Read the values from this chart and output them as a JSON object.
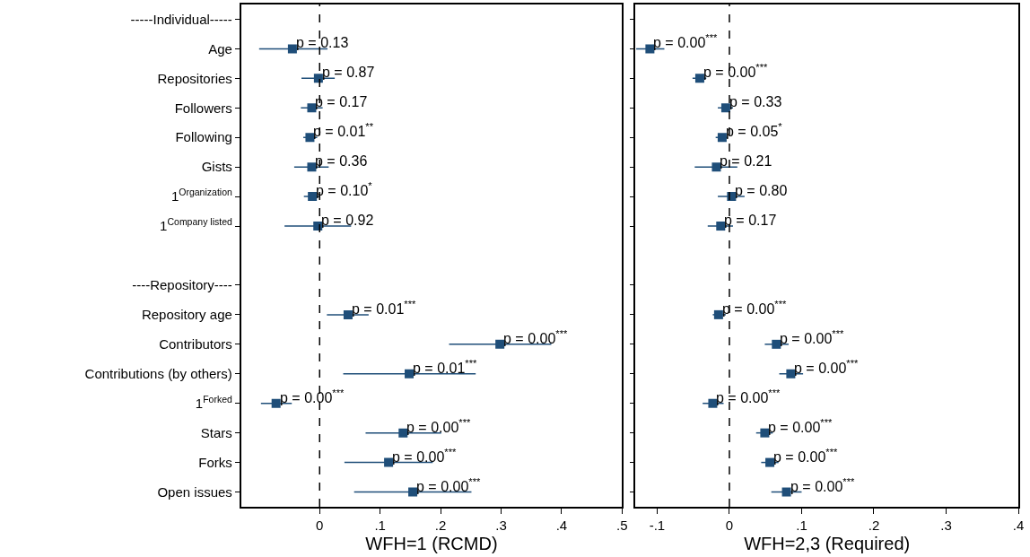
{
  "chart_data": [
    {
      "type": "scatter",
      "orientation": "horizontal",
      "marker": "square",
      "color": "#1f4e79",
      "xlabel": "WFH=1 (RCMD)",
      "categories": [
        "-----Individual-----",
        "Age",
        "Repositories",
        "Followers",
        "Following",
        "Gists",
        "1$^{Organization}$",
        "1$^{Company listed}$",
        null,
        "----Repository----",
        "Repository age",
        "Contributors",
        "Contributions (by others)",
        "1$^{Forked}$",
        "Stars",
        "Forks",
        "Open issues"
      ],
      "values": [
        null,
        -0.045,
        -0.002,
        -0.013,
        -0.016,
        -0.013,
        -0.012,
        -0.003,
        null,
        null,
        0.047,
        0.298,
        0.148,
        -0.072,
        0.138,
        0.114,
        0.154
      ],
      "errors": [
        null,
        [
          -0.1,
          0.013
        ],
        [
          -0.03,
          0.025
        ],
        [
          -0.031,
          0.005
        ],
        [
          -0.027,
          -0.004
        ],
        [
          -0.042,
          0.015
        ],
        [
          -0.026,
          0.0
        ],
        [
          -0.058,
          0.052
        ],
        null,
        null,
        [
          0.012,
          0.081
        ],
        [
          0.214,
          0.383
        ],
        [
          0.039,
          0.258
        ],
        [
          -0.097,
          -0.046
        ],
        [
          0.076,
          0.201
        ],
        [
          0.041,
          0.187
        ],
        [
          0.057,
          0.251
        ]
      ],
      "xlim": [
        -0.13,
        0.5
      ],
      "xticks": [
        0,
        {
          "value": 0.1,
          "label": ".1"
        },
        {
          "value": 0.2,
          "label": ".2"
        },
        {
          "value": 0.3,
          "label": ".3"
        },
        {
          "value": 0.4,
          "label": ".4"
        },
        {
          "value": 0.5,
          "label": ".5"
        }
      ],
      "ref_lines": [
        {
          "axis": "x",
          "value": 0,
          "color": "#000000",
          "line_style": "dashed"
        }
      ],
      "annotations": [
        {
          "text": "p = 0.13",
          "x": -0.045,
          "y": "Age"
        },
        {
          "text": "p = 0.87",
          "x": -0.002,
          "y": "Repositories"
        },
        {
          "text": "p = 0.17",
          "x": -0.013,
          "y": "Followers"
        },
        {
          "text": "p = 0.01$^{**}$",
          "x": -0.016,
          "y": "Following"
        },
        {
          "text": "p = 0.36",
          "x": -0.013,
          "y": "Gists"
        },
        {
          "text": "p = 0.10$^{*}$",
          "x": -0.012,
          "y": "1$^{Organization}$"
        },
        {
          "text": "p = 0.92",
          "x": -0.003,
          "y": "1$^{Company listed}$"
        },
        {
          "text": "p = 0.01$^{***}$",
          "x": 0.047,
          "y": "Repository age"
        },
        {
          "text": "p = 0.00$^{***}$",
          "x": 0.298,
          "y": "Contributors"
        },
        {
          "text": "p = 0.01$^{***}$",
          "x": 0.148,
          "y": "Contributions (by others)"
        },
        {
          "text": "p = 0.00$^{***}$",
          "x": -0.072,
          "y": "1$^{Forked}$"
        },
        {
          "text": "p = 0.00$^{***}$",
          "x": 0.138,
          "y": "Stars"
        },
        {
          "text": "p = 0.00$^{***}$",
          "x": 0.114,
          "y": "Forks"
        },
        {
          "text": "p = 0.00$^{***}$",
          "x": 0.154,
          "y": "Open issues"
        }
      ]
    },
    {
      "type": "scatter",
      "orientation": "horizontal",
      "marker": "square",
      "color": "#1f4e79",
      "xlabel": "WFH=2,3 (Required)",
      "tick_labels": "x",
      "categories": [
        "-----Individual-----",
        "Age",
        "Repositories",
        "Followers",
        "Following",
        "Gists",
        "1$^{Organization}$",
        "1$^{Company listed}$",
        null,
        "----Repository----",
        "Repository age",
        "Contributors",
        "Contributions (by others)",
        "1$^{Forked}$",
        "Stars",
        "Forks",
        "Open issues"
      ],
      "values": [
        null,
        -0.11,
        -0.041,
        -0.005,
        -0.01,
        -0.018,
        0.003,
        -0.012,
        null,
        null,
        -0.015,
        0.065,
        0.085,
        -0.023,
        0.049,
        0.056,
        0.079
      ],
      "errors": [
        null,
        [
          -0.129,
          -0.09
        ],
        [
          -0.051,
          -0.032
        ],
        [
          -0.016,
          0.005
        ],
        [
          -0.019,
          -0.002
        ],
        [
          -0.048,
          0.011
        ],
        [
          -0.016,
          0.021
        ],
        [
          -0.03,
          0.005
        ],
        null,
        null,
        [
          -0.023,
          -0.005
        ],
        [
          0.049,
          0.082
        ],
        [
          0.069,
          0.102
        ],
        [
          -0.037,
          -0.008
        ],
        [
          0.037,
          0.06
        ],
        [
          0.044,
          0.068
        ],
        [
          0.058,
          0.1
        ]
      ],
      "xlim": [
        -0.13,
        0.4
      ],
      "xticks": [
        {
          "value": -0.1,
          "label": "-.1"
        },
        0,
        {
          "value": 0.1,
          "label": ".1"
        },
        {
          "value": 0.2,
          "label": ".2"
        },
        {
          "value": 0.3,
          "label": ".3"
        },
        {
          "value": 0.4,
          "label": ".4"
        }
      ],
      "ref_lines": [
        {
          "axis": "x",
          "value": 0,
          "color": "#000000",
          "line_style": "dashed"
        }
      ],
      "annotations": [
        {
          "text": "p = 0.00$^{***}$",
          "x": -0.11,
          "y": "Age"
        },
        {
          "text": "p = 0.00$^{***}$",
          "x": -0.041,
          "y": "Repositories"
        },
        {
          "text": "p = 0.33",
          "x": -0.005,
          "y": "Followers"
        },
        {
          "text": "p = 0.05$^{*}$",
          "x": -0.01,
          "y": "Following"
        },
        {
          "text": "p = 0.21",
          "x": -0.018,
          "y": "Gists"
        },
        {
          "text": "p = 0.80",
          "x": 0.003,
          "y": "1$^{Organization}$"
        },
        {
          "text": "p = 0.17",
          "x": -0.012,
          "y": "1$^{Company listed}$"
        },
        {
          "text": "p = 0.00$^{***}$",
          "x": -0.015,
          "y": "Repository age"
        },
        {
          "text": "p = 0.00$^{***}$",
          "x": 0.065,
          "y": "Contributors"
        },
        {
          "text": "p = 0.00$^{***}$",
          "x": 0.085,
          "y": "Contributions (by others)"
        },
        {
          "text": "p = 0.00$^{***}$",
          "x": -0.023,
          "y": "1$^{Forked}$"
        },
        {
          "text": "p = 0.00$^{***}$",
          "x": 0.049,
          "y": "Stars"
        },
        {
          "text": "p = 0.00$^{***}$",
          "x": 0.056,
          "y": "Forks"
        },
        {
          "text": "p = 0.00$^{***}$",
          "x": 0.079,
          "y": "Open issues"
        }
      ]
    }
  ]
}
